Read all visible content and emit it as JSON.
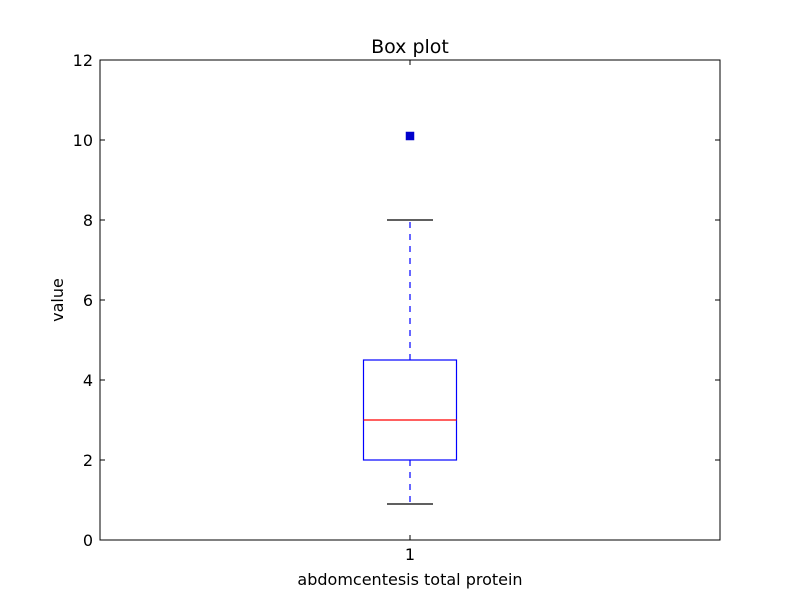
{
  "chart_data": {
    "type": "box",
    "title": "Box plot",
    "xlabel": "abdomcentesis total protein",
    "ylabel": "value",
    "ylim": [
      0,
      12
    ],
    "y_ticks": [
      0,
      2,
      4,
      6,
      8,
      10,
      12
    ],
    "categories": [
      "1"
    ],
    "grid": false,
    "boxes": [
      {
        "category": "1",
        "whisker_low": 0.9,
        "q1": 2.0,
        "median": 3.0,
        "q3": 4.5,
        "whisker_high": 8.0,
        "outliers": [
          10.1
        ]
      }
    ],
    "colors": {
      "box": "#0000ff",
      "whisker": "#0000ff",
      "cap": "#000000",
      "median": "#ff0000",
      "outlier": "#0000cc"
    }
  }
}
